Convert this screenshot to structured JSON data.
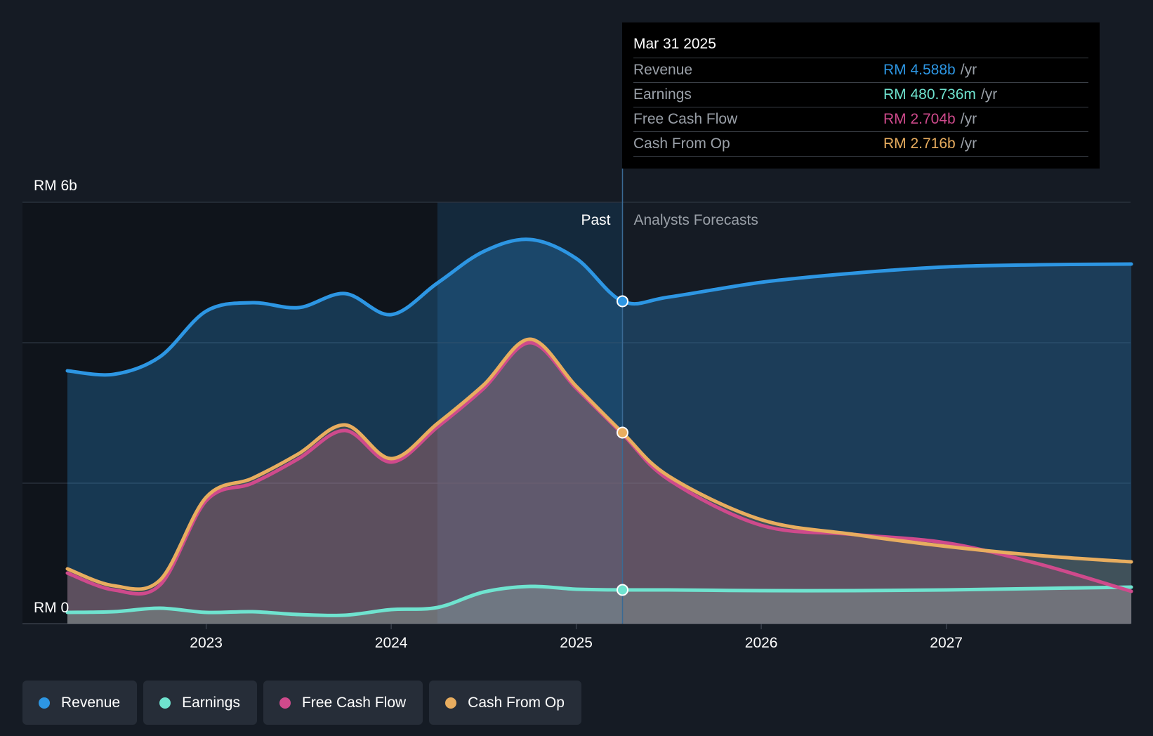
{
  "chart_data": {
    "type": "area",
    "y_axis": {
      "top_label": "RM 6b",
      "bottom_label": "RM 0",
      "ylim": [
        0,
        6
      ],
      "unit": "RM b"
    },
    "x_ticks": [
      "2023",
      "2024",
      "2025",
      "2026",
      "2027"
    ],
    "xlim": [
      2022.25,
      2028.0
    ],
    "divider_date": 2025.25,
    "highlight_start": 2024.25,
    "past_label": "Past",
    "forecast_label": "Analysts Forecasts",
    "series": [
      {
        "key": "revenue",
        "name": "Revenue",
        "color": "#2d96e3",
        "points": [
          [
            2022.25,
            3.6
          ],
          [
            2022.5,
            3.55
          ],
          [
            2022.75,
            3.8
          ],
          [
            2023.0,
            4.45
          ],
          [
            2023.25,
            4.57
          ],
          [
            2023.5,
            4.5
          ],
          [
            2023.75,
            4.7
          ],
          [
            2024.0,
            4.4
          ],
          [
            2024.25,
            4.85
          ],
          [
            2024.5,
            5.3
          ],
          [
            2024.75,
            5.47
          ],
          [
            2025.0,
            5.2
          ],
          [
            2025.25,
            4.59
          ],
          [
            2025.5,
            4.65
          ],
          [
            2026.0,
            4.86
          ],
          [
            2026.5,
            4.99
          ],
          [
            2027.0,
            5.08
          ],
          [
            2027.5,
            5.11
          ],
          [
            2028.0,
            5.12
          ]
        ]
      },
      {
        "key": "earnings",
        "name": "Earnings",
        "color": "#6fe3cf",
        "points": [
          [
            2022.25,
            0.16
          ],
          [
            2022.5,
            0.17
          ],
          [
            2022.75,
            0.22
          ],
          [
            2023.0,
            0.16
          ],
          [
            2023.25,
            0.17
          ],
          [
            2023.5,
            0.13
          ],
          [
            2023.75,
            0.12
          ],
          [
            2024.0,
            0.2
          ],
          [
            2024.25,
            0.23
          ],
          [
            2024.5,
            0.45
          ],
          [
            2024.75,
            0.53
          ],
          [
            2025.0,
            0.49
          ],
          [
            2025.25,
            0.48
          ],
          [
            2025.5,
            0.48
          ],
          [
            2026.0,
            0.47
          ],
          [
            2026.5,
            0.47
          ],
          [
            2027.0,
            0.48
          ],
          [
            2027.5,
            0.5
          ],
          [
            2028.0,
            0.52
          ]
        ]
      },
      {
        "key": "fcf",
        "name": "Free Cash Flow",
        "color": "#cf4a8c",
        "points": [
          [
            2022.25,
            0.72
          ],
          [
            2022.5,
            0.48
          ],
          [
            2022.75,
            0.55
          ],
          [
            2023.0,
            1.75
          ],
          [
            2023.25,
            2.0
          ],
          [
            2023.5,
            2.35
          ],
          [
            2023.75,
            2.75
          ],
          [
            2024.0,
            2.3
          ],
          [
            2024.25,
            2.8
          ],
          [
            2024.5,
            3.35
          ],
          [
            2024.75,
            4.0
          ],
          [
            2025.0,
            3.35
          ],
          [
            2025.25,
            2.7
          ],
          [
            2025.5,
            2.05
          ],
          [
            2026.0,
            1.4
          ],
          [
            2026.5,
            1.27
          ],
          [
            2027.0,
            1.15
          ],
          [
            2027.5,
            0.85
          ],
          [
            2028.0,
            0.46
          ]
        ]
      },
      {
        "key": "cfo",
        "name": "Cash From Op",
        "color": "#e8ad5f",
        "points": [
          [
            2022.25,
            0.78
          ],
          [
            2022.5,
            0.54
          ],
          [
            2022.75,
            0.62
          ],
          [
            2023.0,
            1.8
          ],
          [
            2023.25,
            2.07
          ],
          [
            2023.5,
            2.42
          ],
          [
            2023.75,
            2.83
          ],
          [
            2024.0,
            2.35
          ],
          [
            2024.25,
            2.85
          ],
          [
            2024.5,
            3.4
          ],
          [
            2024.75,
            4.05
          ],
          [
            2025.0,
            3.38
          ],
          [
            2025.25,
            2.72
          ],
          [
            2025.5,
            2.1
          ],
          [
            2026.0,
            1.48
          ],
          [
            2026.5,
            1.27
          ],
          [
            2027.0,
            1.1
          ],
          [
            2027.5,
            0.97
          ],
          [
            2028.0,
            0.88
          ]
        ]
      }
    ]
  },
  "tooltip": {
    "date": "Mar 31 2025",
    "rows": [
      {
        "label": "Revenue",
        "value": "RM 4.588b",
        "unit": "/yr",
        "color": "#2d96e3"
      },
      {
        "label": "Earnings",
        "value": "RM 480.736m",
        "unit": "/yr",
        "color": "#6fe3cf"
      },
      {
        "label": "Free Cash Flow",
        "value": "RM 2.704b",
        "unit": "/yr",
        "color": "#cf4a8c"
      },
      {
        "label": "Cash From Op",
        "value": "RM 2.716b",
        "unit": "/yr",
        "color": "#e8ad5f"
      }
    ]
  },
  "legend": [
    {
      "label": "Revenue",
      "color": "#2d96e3"
    },
    {
      "label": "Earnings",
      "color": "#6fe3cf"
    },
    {
      "label": "Free Cash Flow",
      "color": "#cf4a8c"
    },
    {
      "label": "Cash From Op",
      "color": "#e8ad5f"
    }
  ]
}
